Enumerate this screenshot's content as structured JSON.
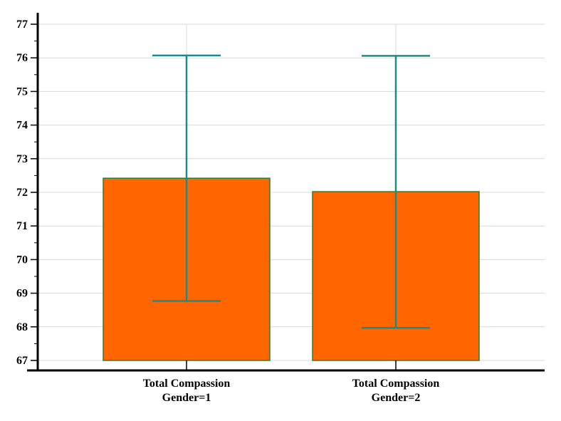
{
  "chart_data": {
    "type": "bar",
    "categories": [
      [
        "Total Compassion",
        "Gender=1"
      ],
      [
        "Total Compassion",
        "Gender=2"
      ]
    ],
    "values": [
      72.42,
      72.02
    ],
    "error_bars": [
      {
        "low": 68.77,
        "high": 76.07
      },
      {
        "low": 67.97,
        "high": 76.06
      }
    ],
    "ylim": [
      67,
      77
    ],
    "yticks": [
      67,
      68,
      69,
      70,
      71,
      72,
      73,
      74,
      75,
      76,
      77
    ],
    "title": "",
    "xlabel": "",
    "ylabel": "",
    "grid": true,
    "colors": {
      "bar_fill": "#ff6600",
      "bar_edge": "#2e7d32",
      "error_bar": "#1a8c8c",
      "grid": "#d9d9d9",
      "axis": "#000000"
    }
  }
}
